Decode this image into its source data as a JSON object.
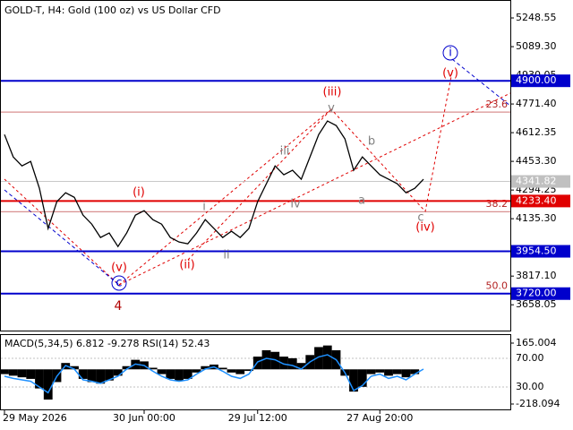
{
  "chart_data": [
    {
      "type": "line",
      "title": "GOLD-T, H4:  Gold (100 oz) vs US Dollar CFD",
      "categories": [
        "29 May 2026",
        null,
        null,
        null,
        null,
        null,
        null,
        null,
        null,
        null,
        null,
        null,
        null,
        null,
        null,
        null,
        "30 Jun 00:00",
        null,
        null,
        null,
        null,
        null,
        null,
        null,
        null,
        null,
        null,
        null,
        null,
        "29 Jul 12:00",
        null,
        null,
        null,
        null,
        null,
        null,
        null,
        null,
        null,
        null,
        null,
        null,
        null,
        "27 Aug 20:00",
        null,
        null,
        null,
        null,
        null
      ],
      "values": [
        4602,
        4478,
        4428,
        4453,
        4304,
        4081,
        4230,
        4279,
        4254,
        4155,
        4105,
        4031,
        4056,
        3981,
        4056,
        4155,
        4180,
        4130,
        4105,
        4031,
        4006,
        3996,
        4056,
        4130,
        4081,
        4031,
        4066,
        4031,
        4081,
        4230,
        4329,
        4428,
        4379,
        4404,
        4354,
        4478,
        4602,
        4677,
        4652,
        4578,
        4404,
        4478,
        4428,
        4379,
        4354,
        4329,
        4279,
        4304,
        4354
      ],
      "color": "#000000",
      "ylim": [
        3520,
        5348
      ],
      "yticks": [
        5248.55,
        {
          "value": 5089.3,
          "label": "5089.30"
        },
        4930.05,
        {
          "value": 4771.4,
          "label": "4771.40"
        },
        4612.35,
        {
          "value": 4453.3,
          "label": "4453.30"
        },
        4294.25,
        {
          "value": 4135.3,
          "label": "4135.30"
        },
        {
          "value": 3817.1,
          "label": "3817.10"
        },
        3658.05
      ],
      "levels": [
        {
          "value": 4900,
          "label": "4900.00",
          "color": "#0000cc"
        },
        {
          "value": 4233.4,
          "label": "4233.40",
          "color": "#e00000"
        },
        {
          "value": 3954.5,
          "label": "3954.50",
          "color": "#0000cc"
        },
        {
          "value": 3720,
          "label": "3720.00",
          "color": "#0000cc"
        }
      ],
      "last_price": 4341.82,
      "fib_levels": [
        {
          "label": "23.6",
          "price": 4727
        },
        {
          "label": "38.2",
          "price": 4175
        },
        {
          "label": "50.0",
          "price": 3722
        }
      ],
      "annotations": [
        "(iii)",
        "(i)",
        "(ii)",
        "(v)",
        "(iv)",
        "(v)",
        "v",
        "iii",
        "iv",
        "ii",
        "i",
        "b",
        "a",
        "c",
        "4",
        "c",
        "i"
      ]
    },
    {
      "type": "macd",
      "title": "MACD(5,34,5) 6.812 -9.278 RSI(14) 52.43",
      "histogram": {
        "color": "#000000",
        "values": [
          -30,
          -40,
          -50,
          -60,
          -120,
          -190,
          -80,
          40,
          20,
          -60,
          -80,
          -90,
          -70,
          -40,
          20,
          60,
          50,
          10,
          -30,
          -60,
          -70,
          -60,
          -20,
          20,
          30,
          10,
          -20,
          -30,
          -10,
          80,
          120,
          110,
          80,
          70,
          40,
          90,
          140,
          150,
          120,
          -40,
          -140,
          -110,
          -30,
          -20,
          -40,
          -30,
          -50,
          -30,
          0
        ]
      },
      "rsi": {
        "color": "#1e90ff",
        "axis": "y2",
        "values": [
          45,
          42,
          40,
          38,
          30,
          22,
          45,
          60,
          55,
          40,
          38,
          35,
          40,
          45,
          55,
          62,
          60,
          52,
          45,
          40,
          38,
          40,
          48,
          55,
          58,
          52,
          45,
          42,
          48,
          65,
          70,
          68,
          62,
          60,
          55,
          65,
          72,
          75,
          68,
          50,
          25,
          32,
          45,
          48,
          42,
          45,
          40,
          48,
          55
        ]
      },
      "ylim": [
        -257.5,
        215.7
      ],
      "yticks": [
        165.004,
        -218.094
      ],
      "y2lim": [
        -2.5,
        102.5
      ],
      "y2ticks": [
        {
          "value": 70,
          "label": "70.00"
        },
        {
          "value": 30,
          "label": "30.00"
        }
      ]
    }
  ]
}
